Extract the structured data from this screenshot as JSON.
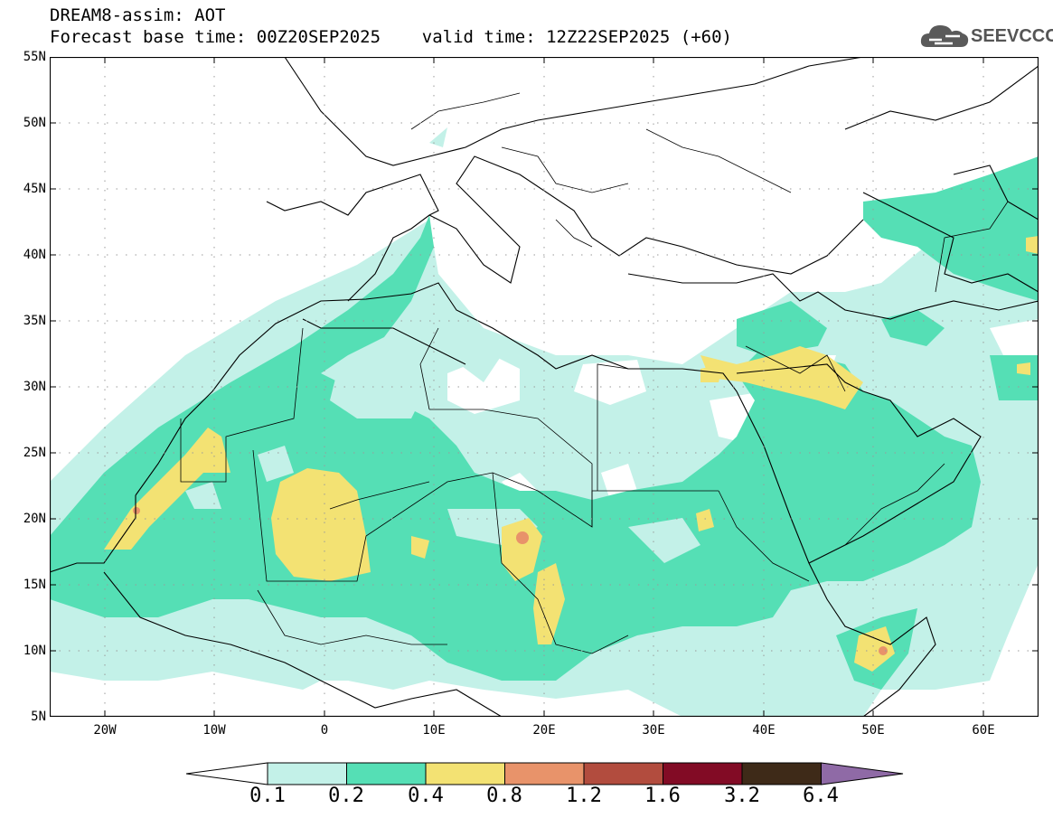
{
  "header": {
    "line1": "DREAM8-assim: AOT",
    "line2": "Forecast base time: 00Z20SEP2025    valid time: 12Z22SEP2025 (+60)"
  },
  "logo": {
    "text": "SEEVCCC",
    "icon": "cloud-icon"
  },
  "map": {
    "variable": "AOT",
    "lat_labels": [
      "55N",
      "50N",
      "45N",
      "40N",
      "35N",
      "30N",
      "25N",
      "20N",
      "15N",
      "10N",
      "5N"
    ],
    "lon_labels": [
      "20W",
      "10W",
      "0",
      "10E",
      "20E",
      "30E",
      "40E",
      "50E",
      "60E"
    ],
    "lat_range": [
      5,
      55
    ],
    "lon_range": [
      -25,
      65
    ]
  },
  "colorbar": {
    "levels": [
      "0.1",
      "0.2",
      "0.4",
      "0.8",
      "1.2",
      "1.6",
      "3.2",
      "6.4"
    ],
    "colors": [
      "#ffffff",
      "#c3f1e8",
      "#55dfb5",
      "#f3e273",
      "#e8936a",
      "#b24c3e",
      "#820b25",
      "#3e2a18",
      "#8f6aa6"
    ]
  }
}
